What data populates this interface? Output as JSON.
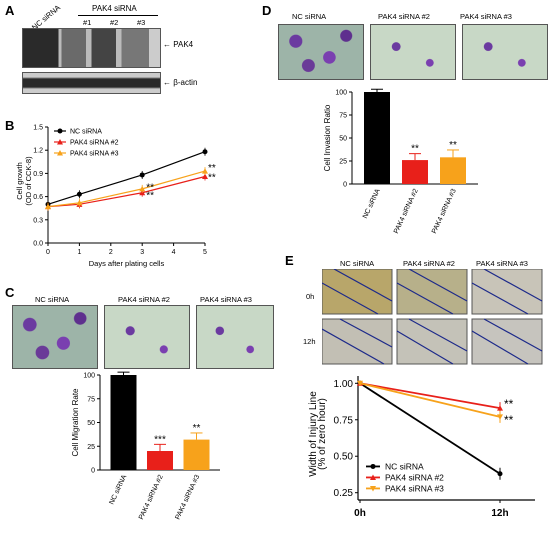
{
  "panels": {
    "A": "A",
    "B": "B",
    "C": "C",
    "D": "D",
    "E": "E"
  },
  "panel_a": {
    "nc_label": "NC siRNA",
    "pak4_label": "PAK4 siRNA",
    "lanes": [
      "#1",
      "#2",
      "#3"
    ],
    "band1": "PAK4",
    "band2": "β-actin"
  },
  "chart_data": [
    {
      "id": "B",
      "type": "line",
      "ylabel": "Cell growth\n(OD of CCK-8)",
      "xlabel": "Days after plating cells",
      "x": [
        0,
        1,
        2,
        3,
        4,
        5
      ],
      "xticks": [
        "0",
        "1",
        "2",
        "3",
        "4",
        "5"
      ],
      "yticks": [
        "0.0",
        "0.3",
        "0.6",
        "0.9",
        "1.2",
        "1.5"
      ],
      "ylim": [
        0,
        1.5
      ],
      "series": [
        {
          "name": "NC siRNA",
          "color": "#000000",
          "x": [
            0,
            1,
            3,
            5
          ],
          "y": [
            0.5,
            0.63,
            0.88,
            1.18
          ]
        },
        {
          "name": "PAK4 siRNA #2",
          "color": "#e8201a",
          "x": [
            0,
            1,
            3,
            5
          ],
          "y": [
            0.47,
            0.5,
            0.65,
            0.86
          ]
        },
        {
          "name": "PAK4 siRNA #3",
          "color": "#f7a21b",
          "x": [
            0,
            1,
            3,
            5
          ],
          "y": [
            0.47,
            0.52,
            0.7,
            0.93
          ]
        }
      ],
      "annotations": [
        "**",
        "**",
        "**",
        "**"
      ]
    },
    {
      "id": "C",
      "type": "bar",
      "ylabel": "Cell Migration Rate",
      "categories": [
        "NC siRNA",
        "PAK4 siRNA #2",
        "PAK4 siRNA #3"
      ],
      "values": [
        100,
        20,
        32
      ],
      "errors": [
        3,
        7,
        7
      ],
      "colors": [
        "#000000",
        "#e8201a",
        "#f7a21b"
      ],
      "ylim": [
        0,
        100
      ],
      "yticks": [
        "0",
        "25",
        "50",
        "75",
        "100"
      ],
      "annotations": [
        "",
        "***",
        "**"
      ]
    },
    {
      "id": "D",
      "type": "bar",
      "ylabel": "Cell Invasion Ratio",
      "categories": [
        "NC siRNA",
        "PAK4 siRNA #2",
        "PAK4 siRNA #3"
      ],
      "values": [
        100,
        26,
        29
      ],
      "errors": [
        3,
        7,
        8
      ],
      "colors": [
        "#000000",
        "#e8201a",
        "#f7a21b"
      ],
      "ylim": [
        0,
        100
      ],
      "yticks": [
        "0",
        "25",
        "50",
        "75",
        "100"
      ],
      "annotations": [
        "",
        "**",
        "**"
      ]
    },
    {
      "id": "E",
      "type": "line",
      "ylabel": "Width of Injury Line\n(% of zero hour)",
      "categories": [
        "0h",
        "12h"
      ],
      "yticks": [
        "0.25",
        "0.50",
        "0.75",
        "1.00"
      ],
      "ylim": [
        0.2,
        1.05
      ],
      "series": [
        {
          "name": "NC siRNA",
          "color": "#000000",
          "marker": "circle",
          "y": [
            1.0,
            0.38
          ]
        },
        {
          "name": "PAK4 siRNA #2",
          "color": "#e8201a",
          "marker": "triangle",
          "y": [
            1.0,
            0.83
          ]
        },
        {
          "name": "PAK4 siRNA #3",
          "color": "#f7a21b",
          "marker": "triangle-down",
          "y": [
            1.0,
            0.77
          ]
        }
      ],
      "annotations": [
        "**",
        "**"
      ]
    }
  ],
  "panel_c_images": [
    "NC siRNA",
    "PAK4 siRNA #2",
    "PAK4 siRNA #3"
  ],
  "panel_d_images": [
    "NC siRNA",
    "PAK4 siRNA #2",
    "PAK4 siRNA #3"
  ],
  "panel_e_images": {
    "cols": [
      "NC siRNA",
      "PAK4 siRNA #2",
      "PAK4 siRNA #3"
    ],
    "rows": [
      "0h",
      "12h"
    ]
  }
}
